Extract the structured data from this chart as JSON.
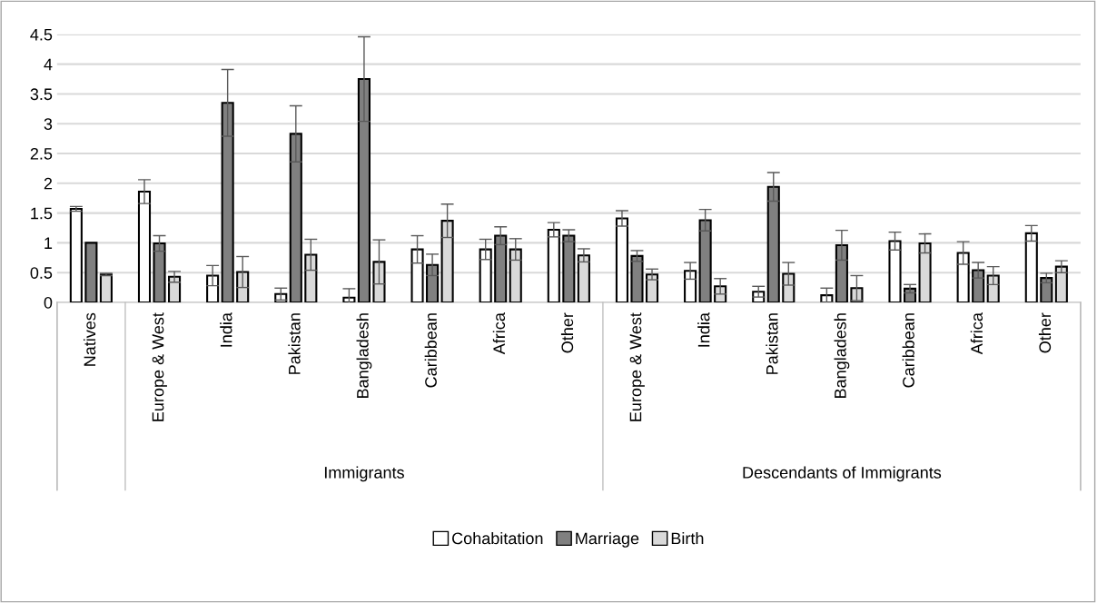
{
  "chart_data": {
    "type": "bar",
    "categories": [
      "Natives",
      "Europe & West",
      "India",
      "Pakistan",
      "Bangladesh",
      "Caribbean",
      "Africa",
      "Other",
      "Europe & West",
      "India",
      "Pakistan",
      "Bangladesh",
      "Caribbean",
      "Africa",
      "Other"
    ],
    "series": [
      {
        "name": "Cohabitation",
        "color": "#ffffff",
        "values": [
          1.57,
          1.86,
          0.45,
          0.14,
          0.08,
          0.89,
          0.89,
          1.22,
          1.41,
          0.53,
          0.18,
          0.12,
          1.03,
          0.83,
          1.16
        ],
        "errors": [
          0.04,
          0.2,
          0.17,
          0.1,
          0.15,
          0.23,
          0.17,
          0.12,
          0.13,
          0.14,
          0.09,
          0.12,
          0.15,
          0.19,
          0.13
        ]
      },
      {
        "name": "Marriage",
        "color": "#808080",
        "values": [
          1.0,
          0.99,
          3.35,
          2.83,
          3.75,
          0.63,
          1.12,
          1.12,
          0.78,
          1.38,
          1.94,
          0.96,
          0.23,
          0.54,
          0.41
        ],
        "errors": [
          null,
          0.13,
          0.56,
          0.47,
          0.71,
          0.18,
          0.15,
          0.1,
          0.09,
          0.18,
          0.24,
          0.25,
          0.07,
          0.13,
          0.08
        ]
      },
      {
        "name": "Birth",
        "color": "#d9d9d9",
        "values": [
          0.47,
          0.43,
          0.51,
          0.8,
          0.68,
          1.37,
          0.89,
          0.79,
          0.47,
          0.27,
          0.48,
          0.24,
          0.99,
          0.45,
          0.6
        ],
        "errors": [
          0.02,
          0.09,
          0.26,
          0.26,
          0.37,
          0.28,
          0.18,
          0.11,
          0.09,
          0.13,
          0.19,
          0.21,
          0.16,
          0.15,
          0.1
        ]
      }
    ],
    "ylim": [
      0,
      4.5
    ],
    "yticks": [
      0,
      0.5,
      1,
      1.5,
      2,
      2.5,
      3,
      3.5,
      4,
      4.5
    ],
    "grid": "y",
    "legend": "bottom",
    "annotations": [
      "Immigrants",
      "Descendants of Immigrants"
    ]
  }
}
